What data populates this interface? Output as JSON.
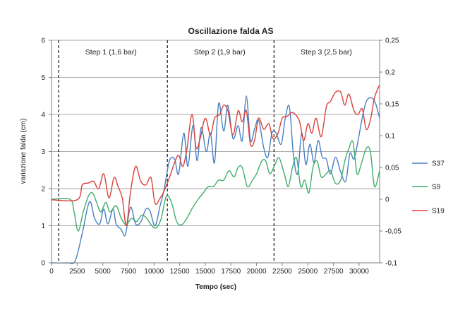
{
  "chart_data": {
    "type": "line",
    "title": "Oscillazione falda AS",
    "xlabel": "Tempo (sec)",
    "ylabel": "variazione falda (cm)",
    "y2label": "",
    "xlim": [
      0,
      32000
    ],
    "ylim": [
      0,
      6
    ],
    "y2lim": [
      -0.1,
      0.25
    ],
    "xticks": [
      0,
      2500,
      5000,
      7500,
      10000,
      12500,
      15000,
      17500,
      20000,
      22500,
      25000,
      27500,
      30000
    ],
    "yticks": [
      0,
      1,
      2,
      3,
      4,
      5,
      6
    ],
    "y2ticks": [
      -0.1,
      -0.05,
      0,
      0.05,
      0.1,
      0.15,
      0.2,
      0.25
    ],
    "y2tick_labels": [
      "-0,1",
      "-0,05",
      "0",
      "0,05",
      "0,1",
      "0,15",
      "0,2",
      "0,25"
    ],
    "grid": true,
    "legend_position": "right",
    "step_markers": [
      {
        "x": 700,
        "label": ""
      },
      {
        "x": 11300,
        "label": ""
      },
      {
        "x": 21700,
        "label": ""
      }
    ],
    "annotations": [
      {
        "text": "Step 1 (1,6 bar)",
        "x": 5800,
        "y": 5.7
      },
      {
        "text": "Step 2 (1,9 bar)",
        "x": 16400,
        "y": 5.7
      },
      {
        "text": "Step 3 (2,5 bar)",
        "x": 26800,
        "y": 5.7
      }
    ],
    "series": [
      {
        "name": "S37",
        "axis": "y",
        "color": "#4a7fc1",
        "points": [
          [
            0,
            0
          ],
          [
            1500,
            0
          ],
          [
            2300,
            0.05
          ],
          [
            3000,
            0.8
          ],
          [
            3700,
            1.65
          ],
          [
            4200,
            1.2
          ],
          [
            4700,
            1.05
          ],
          [
            5100,
            1.45
          ],
          [
            5500,
            1.05
          ],
          [
            6000,
            1.45
          ],
          [
            6300,
            1.05
          ],
          [
            6800,
            0.9
          ],
          [
            7200,
            0.75
          ],
          [
            7700,
            1.5
          ],
          [
            8200,
            1.05
          ],
          [
            8700,
            1.1
          ],
          [
            9200,
            1.45
          ],
          [
            9600,
            1.4
          ],
          [
            10100,
            1.0
          ],
          [
            10600,
            1.55
          ],
          [
            11000,
            2.0
          ],
          [
            11500,
            2.75
          ],
          [
            12000,
            2.8
          ],
          [
            12400,
            2.4
          ],
          [
            12900,
            3.5
          ],
          [
            13300,
            2.6
          ],
          [
            13800,
            3.7
          ],
          [
            14200,
            2.75
          ],
          [
            14600,
            3.65
          ],
          [
            15100,
            3.0
          ],
          [
            15500,
            3.5
          ],
          [
            15900,
            2.7
          ],
          [
            16300,
            4.3
          ],
          [
            16800,
            3.55
          ],
          [
            17200,
            4.25
          ],
          [
            17700,
            3.35
          ],
          [
            18200,
            3.7
          ],
          [
            18600,
            3.3
          ],
          [
            19000,
            4.5
          ],
          [
            19400,
            3.3
          ],
          [
            19800,
            3.6
          ],
          [
            20200,
            3.85
          ],
          [
            20700,
            3.1
          ],
          [
            21100,
            2.85
          ],
          [
            21500,
            3.5
          ],
          [
            21900,
            3.5
          ],
          [
            22400,
            3.2
          ],
          [
            22800,
            3.9
          ],
          [
            23200,
            4.2
          ],
          [
            23600,
            2.9
          ],
          [
            24000,
            2.4
          ],
          [
            24400,
            3.5
          ],
          [
            24800,
            2.65
          ],
          [
            25200,
            3.2
          ],
          [
            25600,
            2.7
          ],
          [
            26000,
            3.3
          ],
          [
            26400,
            2.85
          ],
          [
            26800,
            2.8
          ],
          [
            27200,
            2.4
          ],
          [
            27700,
            2.85
          ],
          [
            28200,
            2.45
          ],
          [
            28700,
            2.2
          ],
          [
            29100,
            2.95
          ],
          [
            29500,
            2.8
          ],
          [
            29900,
            3.3
          ],
          [
            30300,
            3.9
          ],
          [
            30700,
            4.35
          ],
          [
            31200,
            4.45
          ],
          [
            31600,
            4.3
          ],
          [
            32000,
            3.9
          ]
        ]
      },
      {
        "name": "S9",
        "axis": "y2",
        "color": "#3fae6a",
        "points": [
          [
            0,
            0
          ],
          [
            1800,
            0
          ],
          [
            2200,
            -0.02
          ],
          [
            2600,
            -0.05
          ],
          [
            3100,
            -0.02
          ],
          [
            3600,
            0.005
          ],
          [
            4000,
            0.01
          ],
          [
            4400,
            -0.005
          ],
          [
            4800,
            -0.02
          ],
          [
            5300,
            -0.005
          ],
          [
            5700,
            -0.02
          ],
          [
            6300,
            -0.01
          ],
          [
            6800,
            -0.03
          ],
          [
            7300,
            -0.04
          ],
          [
            7800,
            -0.03
          ],
          [
            8300,
            -0.035
          ],
          [
            8800,
            -0.025
          ],
          [
            9300,
            -0.03
          ],
          [
            9700,
            -0.04
          ],
          [
            10200,
            -0.045
          ],
          [
            10700,
            -0.03
          ],
          [
            11200,
            0.005
          ],
          [
            11700,
            -0.005
          ],
          [
            12200,
            -0.035
          ],
          [
            12700,
            -0.04
          ],
          [
            13200,
            -0.03
          ],
          [
            13700,
            -0.015
          ],
          [
            14300,
            0
          ],
          [
            14800,
            0.01
          ],
          [
            15300,
            0.02
          ],
          [
            15800,
            0.02
          ],
          [
            16300,
            0.03
          ],
          [
            16800,
            0.03
          ],
          [
            17300,
            0.045
          ],
          [
            17800,
            0.035
          ],
          [
            18200,
            0.05
          ],
          [
            18600,
            0.05
          ],
          [
            19100,
            0.02
          ],
          [
            19600,
            0.03
          ],
          [
            20000,
            0.04
          ],
          [
            20500,
            0.06
          ],
          [
            20900,
            0.06
          ],
          [
            21300,
            0.04
          ],
          [
            21800,
            0.055
          ],
          [
            22200,
            0.065
          ],
          [
            22700,
            0.04
          ],
          [
            23100,
            0.02
          ],
          [
            23500,
            0.05
          ],
          [
            23900,
            0.065
          ],
          [
            24300,
            0.02
          ],
          [
            24700,
            0.03
          ],
          [
            25100,
            0.01
          ],
          [
            25500,
            0.05
          ],
          [
            25900,
            0.06
          ],
          [
            26300,
            0.035
          ],
          [
            26800,
            0.04
          ],
          [
            27200,
            0.045
          ],
          [
            27700,
            0.025
          ],
          [
            28200,
            0.03
          ],
          [
            28600,
            0.06
          ],
          [
            29000,
            0.08
          ],
          [
            29400,
            0.09
          ],
          [
            29800,
            0.04
          ],
          [
            30200,
            0.055
          ],
          [
            30700,
            0.08
          ],
          [
            31100,
            0.075
          ],
          [
            31500,
            0.02
          ],
          [
            32000,
            0.045
          ]
        ]
      },
      {
        "name": "S19",
        "axis": "y",
        "color": "#d9423a",
        "points": [
          [
            0,
            1.7
          ],
          [
            2500,
            1.7
          ],
          [
            3000,
            2.1
          ],
          [
            3600,
            2.15
          ],
          [
            4100,
            2.2
          ],
          [
            4600,
            2.0
          ],
          [
            5100,
            2.4
          ],
          [
            5600,
            1.75
          ],
          [
            6100,
            2.3
          ],
          [
            6500,
            2.05
          ],
          [
            6900,
            1.75
          ],
          [
            7300,
            1.0
          ],
          [
            7700,
            1.9
          ],
          [
            8200,
            2.6
          ],
          [
            8700,
            2.2
          ],
          [
            9200,
            2.1
          ],
          [
            9700,
            2.3
          ],
          [
            10100,
            1.6
          ],
          [
            10600,
            1.75
          ],
          [
            11000,
            1.95
          ],
          [
            11500,
            2.3
          ],
          [
            12000,
            2.7
          ],
          [
            12400,
            2.9
          ],
          [
            12800,
            2.6
          ],
          [
            13200,
            3.05
          ],
          [
            13700,
            4.0
          ],
          [
            14100,
            3.1
          ],
          [
            14500,
            3.35
          ],
          [
            15000,
            3.9
          ],
          [
            15500,
            3.45
          ],
          [
            15900,
            3.9
          ],
          [
            16400,
            4.0
          ],
          [
            16800,
            4.25
          ],
          [
            17200,
            4.1
          ],
          [
            17700,
            3.45
          ],
          [
            18200,
            4.1
          ],
          [
            18600,
            3.8
          ],
          [
            19000,
            4.1
          ],
          [
            19400,
            3.2
          ],
          [
            19800,
            3.3
          ],
          [
            20200,
            3.9
          ],
          [
            20700,
            3.6
          ],
          [
            21200,
            3.75
          ],
          [
            21600,
            3.35
          ],
          [
            22100,
            3.5
          ],
          [
            22500,
            3.9
          ],
          [
            23000,
            3.95
          ],
          [
            23400,
            4.05
          ],
          [
            23800,
            4.0
          ],
          [
            24200,
            3.8
          ],
          [
            24600,
            3.3
          ],
          [
            25000,
            3.75
          ],
          [
            25400,
            3.5
          ],
          [
            25800,
            3.9
          ],
          [
            26300,
            3.4
          ],
          [
            26800,
            4.2
          ],
          [
            27200,
            4.35
          ],
          [
            27700,
            4.6
          ],
          [
            28200,
            4.6
          ],
          [
            28600,
            4.25
          ],
          [
            29000,
            4.55
          ],
          [
            29500,
            4.1
          ],
          [
            29900,
            4.0
          ],
          [
            30300,
            4.15
          ],
          [
            30700,
            3.6
          ],
          [
            31100,
            3.85
          ],
          [
            31500,
            4.45
          ],
          [
            32000,
            4.8
          ]
        ]
      }
    ]
  }
}
